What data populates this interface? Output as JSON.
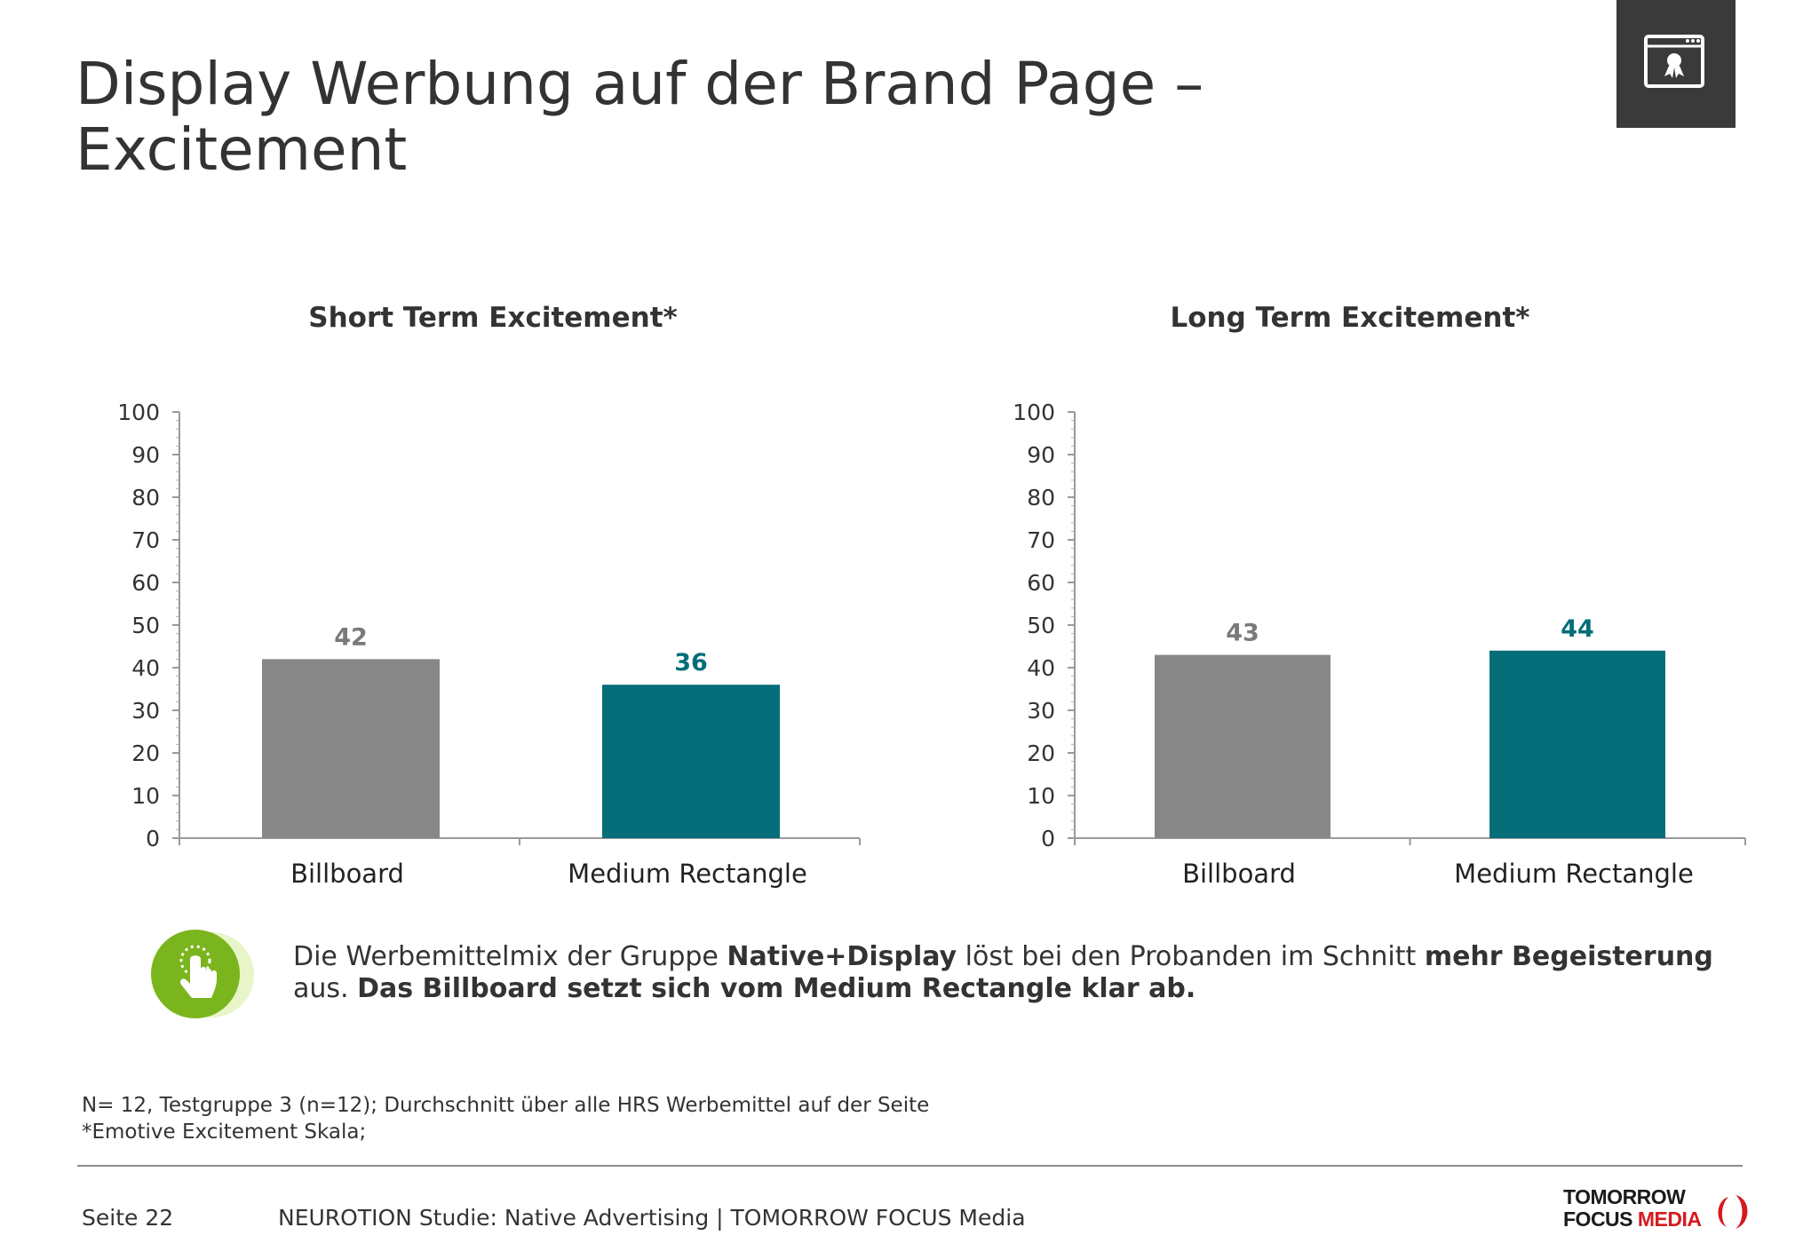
{
  "title": "Display Werbung auf der Brand Page – Excitement",
  "colors": {
    "billboard": "#878787",
    "medium_rectangle": "#056e79",
    "billboard_label": "#7a7a7a",
    "medium_rectangle_label": "#056e79"
  },
  "chart_data": [
    {
      "type": "bar",
      "title": "Short Term Excitement*",
      "categories": [
        "Billboard",
        "Medium Rectangle"
      ],
      "values": [
        42,
        36
      ],
      "ylim": [
        0,
        100
      ],
      "yticks": [
        0,
        10,
        20,
        30,
        40,
        50,
        60,
        70,
        80,
        90,
        100
      ],
      "xlabel": "",
      "ylabel": "",
      "grid": false
    },
    {
      "type": "bar",
      "title": "Long Term Excitement*",
      "categories": [
        "Billboard",
        "Medium Rectangle"
      ],
      "values": [
        43,
        44
      ],
      "ylim": [
        0,
        100
      ],
      "yticks": [
        0,
        10,
        20,
        30,
        40,
        50,
        60,
        70,
        80,
        90,
        100
      ],
      "xlabel": "",
      "ylabel": "",
      "grid": false
    }
  ],
  "callout": {
    "icon": "touch-hand-icon",
    "part1": "Die Werbemittelmix der Gruppe ",
    "bold1": "Native+Display",
    "part2": " löst bei den Probanden im Schnitt ",
    "bold2": "mehr Begeisterung",
    "part3": " aus. ",
    "bold3": "Das Billboard setzt sich vom Medium Rectangle klar ab."
  },
  "footnotes": {
    "line1": "N= 12, Testgruppe 3 (n=12); Durchschnitt über alle HRS Werbemittel auf der Seite",
    "line2": "*Emotive Excitement Skala;"
  },
  "footer": {
    "page": "Seite 22",
    "study": "NEUROTION Studie: Native Advertising | TOMORROW FOCUS Media"
  },
  "logo": {
    "line1": "TOMORROW",
    "line2a": "FOCUS ",
    "line2b": "MEDIA"
  },
  "corner_icon": "certificate-window-icon"
}
